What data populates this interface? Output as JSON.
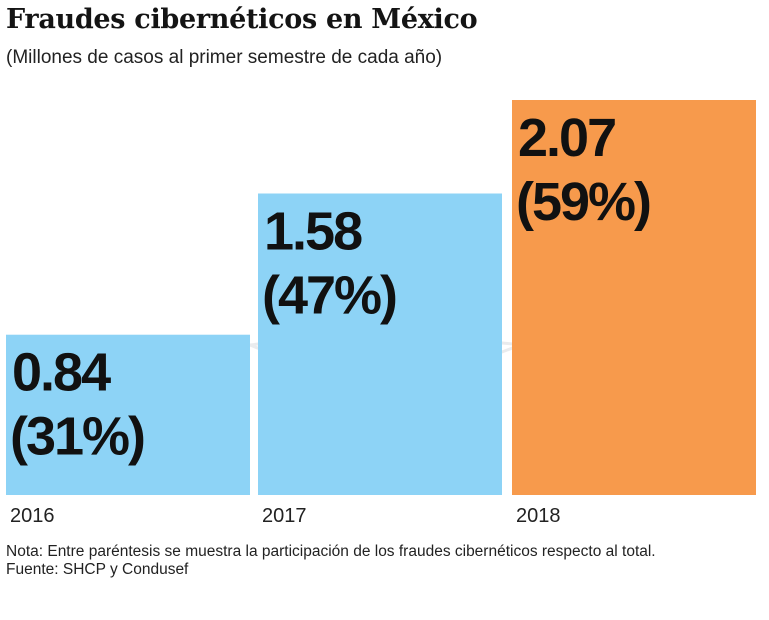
{
  "chart_data": {
    "type": "bar",
    "title": "Fraudes cibernéticos en México",
    "subtitle": "(Millones de casos al primer semestre de cada año)",
    "categories": [
      "2016",
      "2017",
      "2018"
    ],
    "values": [
      0.84,
      1.58,
      2.07
    ],
    "value_labels": [
      "0.84",
      "1.58",
      "2.07"
    ],
    "share_labels": [
      "(31%)",
      "(47%)",
      "(59%)"
    ],
    "colors": [
      "#8dd3f6",
      "#8dd3f6",
      "#f79a4c"
    ],
    "ylim": [
      0,
      2.07
    ],
    "xlabel": "",
    "ylabel": ""
  },
  "notes": {
    "nota": "Nota: Entre paréntesis se muestra la participación de los fraudes cibernéticos respecto al total.",
    "fuente": "Fuente: SHCP y Condusef"
  }
}
